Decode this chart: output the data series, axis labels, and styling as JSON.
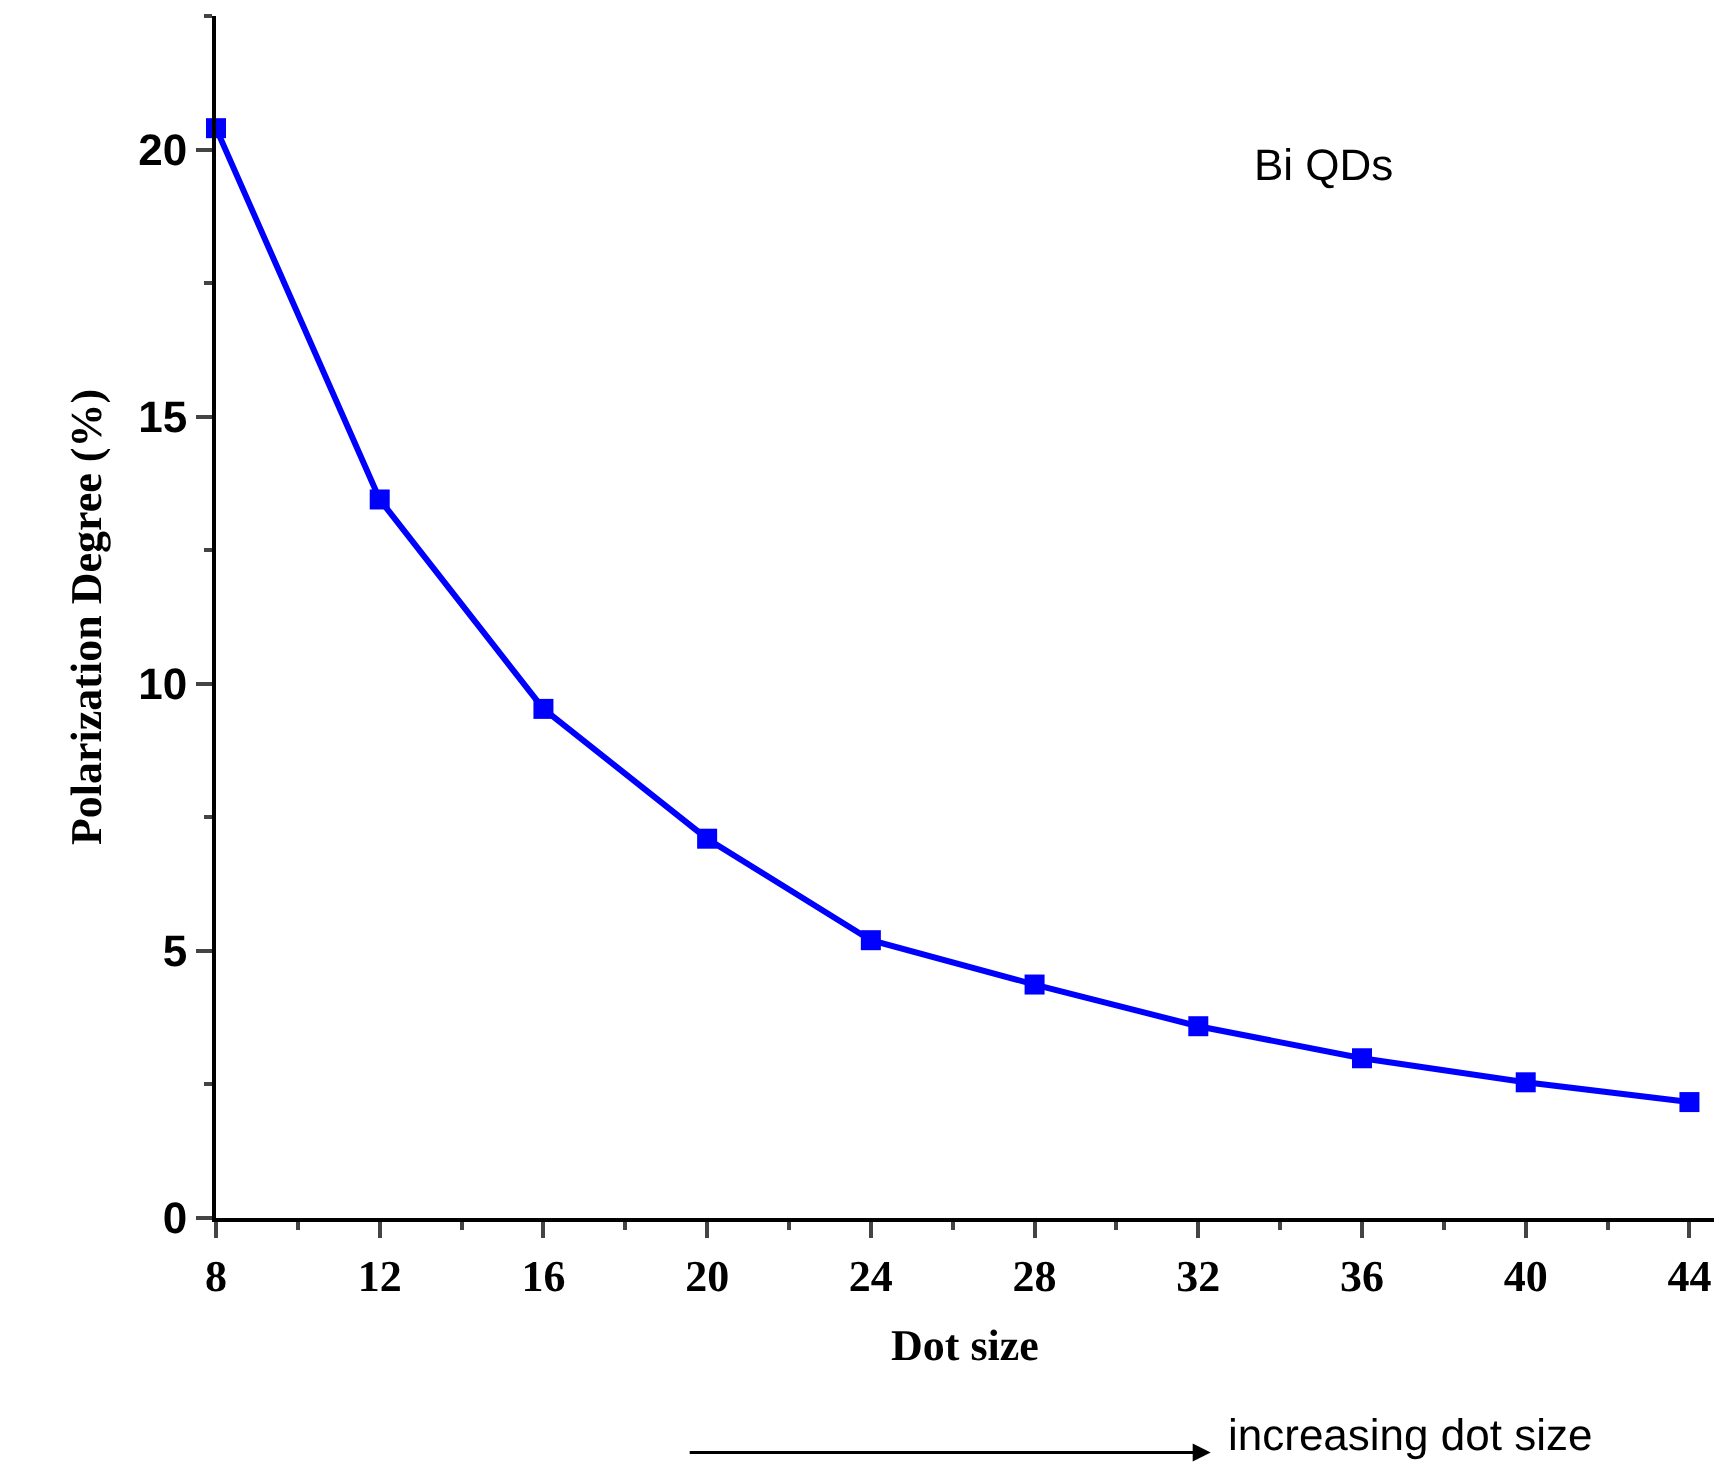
{
  "chart_data": {
    "type": "line",
    "xlabel": "Dot size",
    "ylabel": "Polarization Degree (%)",
    "x": [
      8,
      12,
      16,
      20,
      24,
      28,
      32,
      36,
      40,
      44
    ],
    "series": [
      {
        "color": "#0000ff",
        "values": [
          20.4,
          13.45,
          9.53,
          7.1,
          5.2,
          4.37,
          3.59,
          2.99,
          2.54,
          2.17
        ]
      }
    ],
    "xlim": [
      8,
      44.6
    ],
    "xticks": [
      8,
      12,
      16,
      20,
      24,
      28,
      32,
      36,
      40,
      44
    ],
    "ylim": [
      0,
      22.5
    ],
    "yticks": [
      0,
      5,
      10,
      15,
      20
    ],
    "marker": "square",
    "line_style": "solid",
    "annotations": [
      "Bi QDs",
      "increasing dot size"
    ]
  }
}
